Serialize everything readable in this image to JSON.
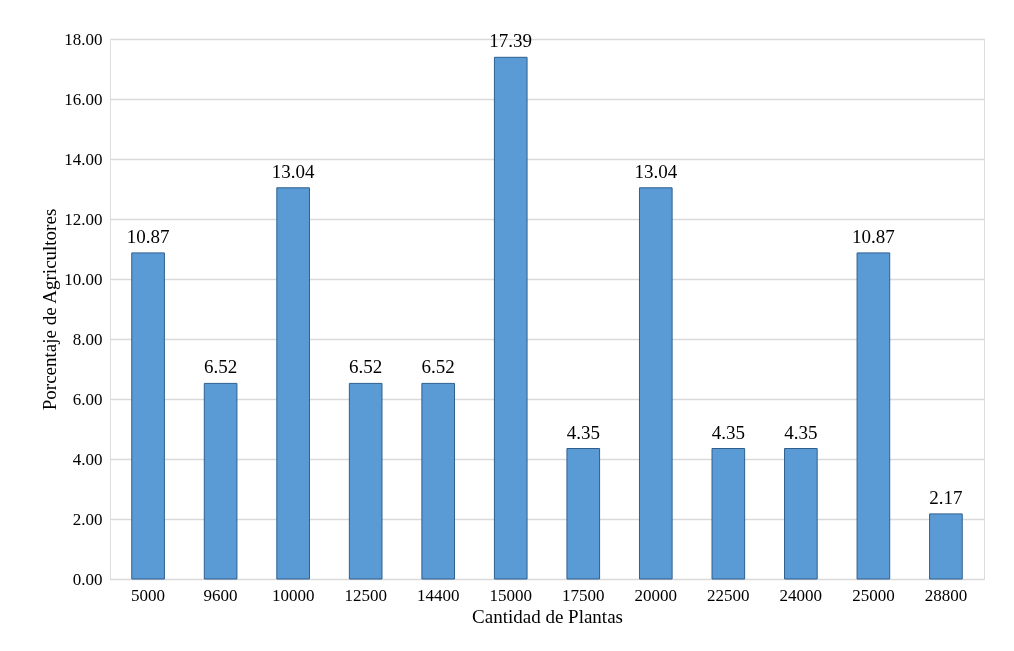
{
  "chart_data": {
    "type": "bar",
    "xlabel": "Cantidad de Plantas",
    "ylabel": "Porcentaje de Agricultores",
    "categories": [
      "5000",
      "9600",
      "10000",
      "12500",
      "14400",
      "15000",
      "17500",
      "20000",
      "22500",
      "24000",
      "25000",
      "28800"
    ],
    "values": [
      10.87,
      6.52,
      13.04,
      6.52,
      6.52,
      17.39,
      4.35,
      13.04,
      4.35,
      4.35,
      10.87,
      2.17
    ],
    "color": "#5b9bd5",
    "ylim": [
      0,
      18
    ],
    "yticks": [
      {
        "value": 0,
        "label": "0.00"
      },
      {
        "value": 2,
        "label": "2.00"
      },
      {
        "value": 4,
        "label": "4.00"
      },
      {
        "value": 6,
        "label": "6.00"
      },
      {
        "value": 8,
        "label": "8.00"
      },
      {
        "value": 10,
        "label": "10.00"
      },
      {
        "value": 12,
        "label": "12.00"
      },
      {
        "value": 14,
        "label": "14.00"
      },
      {
        "value": 16,
        "label": "16.00"
      },
      {
        "value": 18,
        "label": "18.00"
      }
    ],
    "grid": "y",
    "data_labels": true
  }
}
